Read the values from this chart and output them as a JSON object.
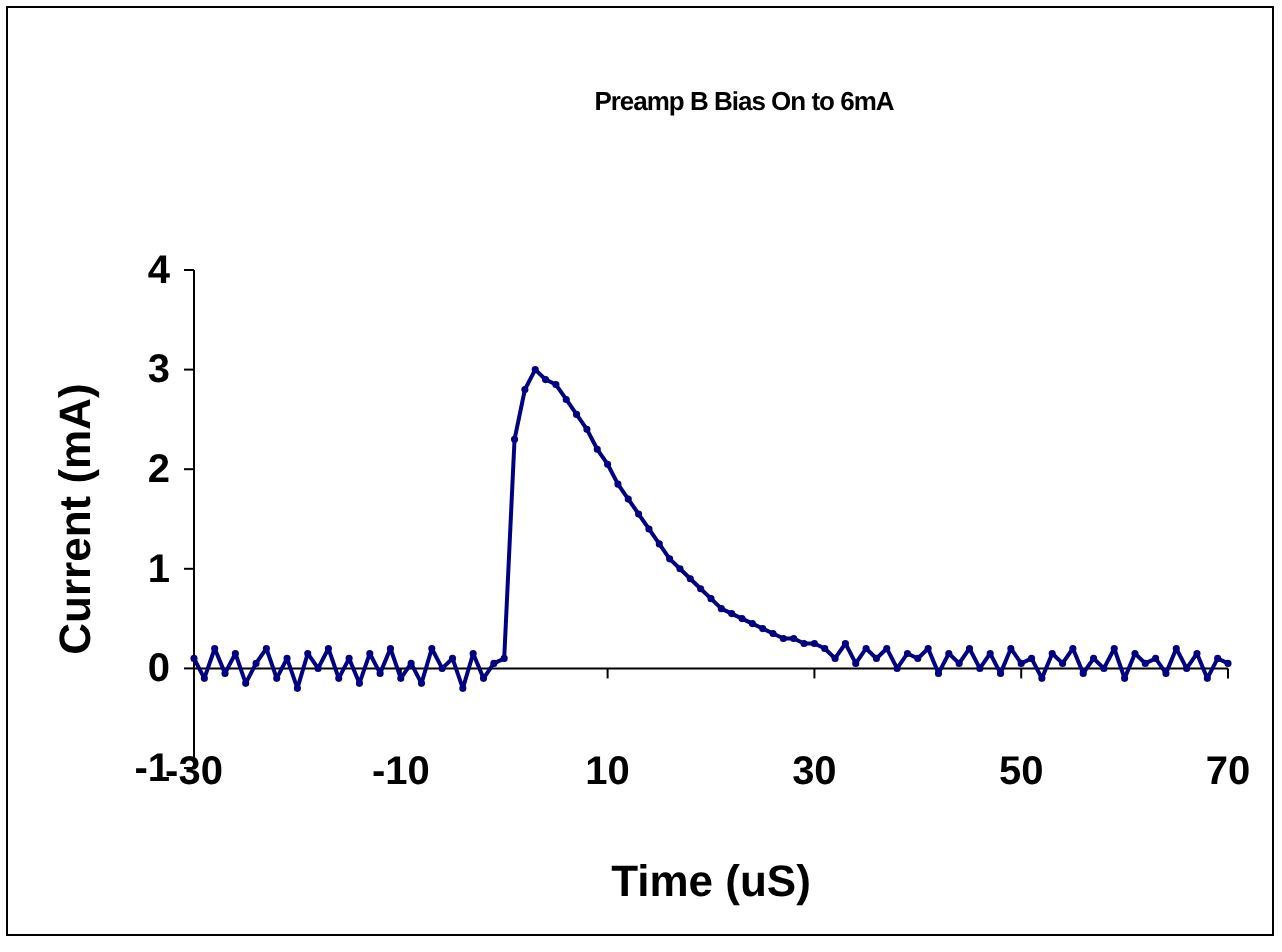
{
  "chart_data": {
    "type": "line",
    "title": "Preamp B Bias On to 6mA",
    "xlabel": "Time (uS)",
    "ylabel": "Current (mA)",
    "x": [
      -30,
      -29,
      -28,
      -27,
      -26,
      -25,
      -24,
      -23,
      -22,
      -21,
      -20,
      -19,
      -18,
      -17,
      -16,
      -15,
      -14,
      -13,
      -12,
      -11,
      -10,
      -9,
      -8,
      -7,
      -6,
      -5,
      -4,
      -3,
      -2,
      -1,
      0,
      1,
      2,
      3,
      4,
      5,
      6,
      7,
      8,
      9,
      10,
      11,
      12,
      13,
      14,
      15,
      16,
      17,
      18,
      19,
      20,
      21,
      22,
      23,
      24,
      25,
      26,
      27,
      28,
      29,
      30,
      31,
      32,
      33,
      34,
      35,
      36,
      37,
      38,
      39,
      40,
      41,
      42,
      43,
      44,
      45,
      46,
      47,
      48,
      49,
      50,
      51,
      52,
      53,
      54,
      55,
      56,
      57,
      58,
      59,
      60,
      61,
      62,
      63,
      64,
      65,
      66,
      67,
      68,
      69,
      70
    ],
    "series": [
      {
        "color": "#000080",
        "values": [
          0.1,
          -0.1,
          0.2,
          -0.05,
          0.15,
          -0.15,
          0.05,
          0.2,
          -0.1,
          0.1,
          -0.2,
          0.15,
          0,
          0.2,
          -0.1,
          0.1,
          -0.15,
          0.15,
          -0.05,
          0.2,
          -0.1,
          0.05,
          -0.15,
          0.2,
          0,
          0.1,
          -0.2,
          0.15,
          -0.1,
          0.05,
          0.1,
          2.3,
          2.8,
          3.0,
          2.9,
          2.85,
          2.7,
          2.55,
          2.4,
          2.2,
          2.05,
          1.85,
          1.7,
          1.55,
          1.4,
          1.25,
          1.1,
          1.0,
          0.9,
          0.8,
          0.7,
          0.6,
          0.55,
          0.5,
          0.45,
          0.4,
          0.35,
          0.3,
          0.3,
          0.25,
          0.25,
          0.2,
          0.1,
          0.25,
          0.05,
          0.2,
          0.1,
          0.2,
          0,
          0.15,
          0.1,
          0.2,
          -0.05,
          0.15,
          0.05,
          0.2,
          0,
          0.15,
          -0.05,
          0.2,
          0.05,
          0.1,
          -0.1,
          0.15,
          0.05,
          0.2,
          -0.05,
          0.1,
          0,
          0.2,
          -0.1,
          0.15,
          0.05,
          0.1,
          -0.05,
          0.2,
          0,
          0.15,
          -0.1,
          0.1,
          0.05
        ]
      }
    ],
    "xlim": [
      -30,
      70
    ],
    "xticks": [
      -30,
      -10,
      10,
      30,
      50,
      70
    ],
    "ylim": [
      -1,
      4
    ],
    "yticks": [
      -1,
      0,
      1,
      2,
      3,
      4
    ],
    "grid": false,
    "legend": false,
    "marker": "circle",
    "line_style": "solid"
  }
}
